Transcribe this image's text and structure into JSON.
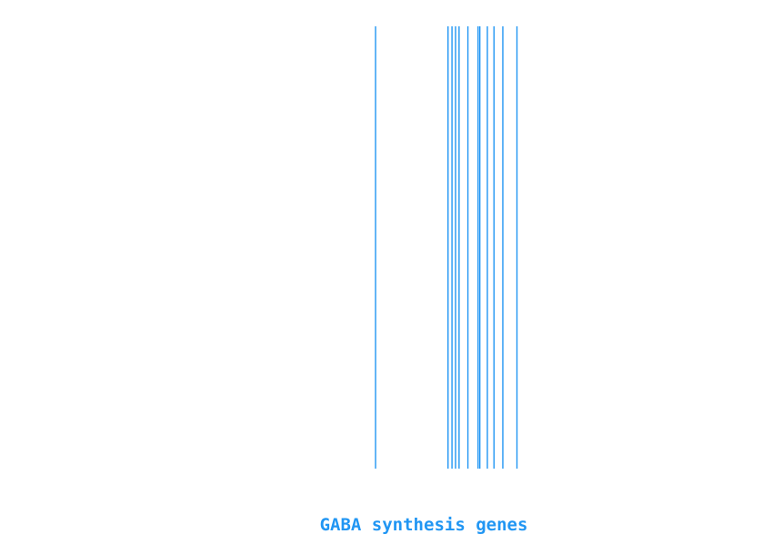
{
  "chart_data": {
    "type": "barcode",
    "xlabel": "GABA synthesis genes",
    "line_color": "#2196F3",
    "positions": [
      0.0,
      0.164,
      0.173,
      0.181,
      0.189,
      0.209,
      0.232,
      0.236,
      0.253,
      0.268,
      0.288,
      0.32
    ]
  }
}
